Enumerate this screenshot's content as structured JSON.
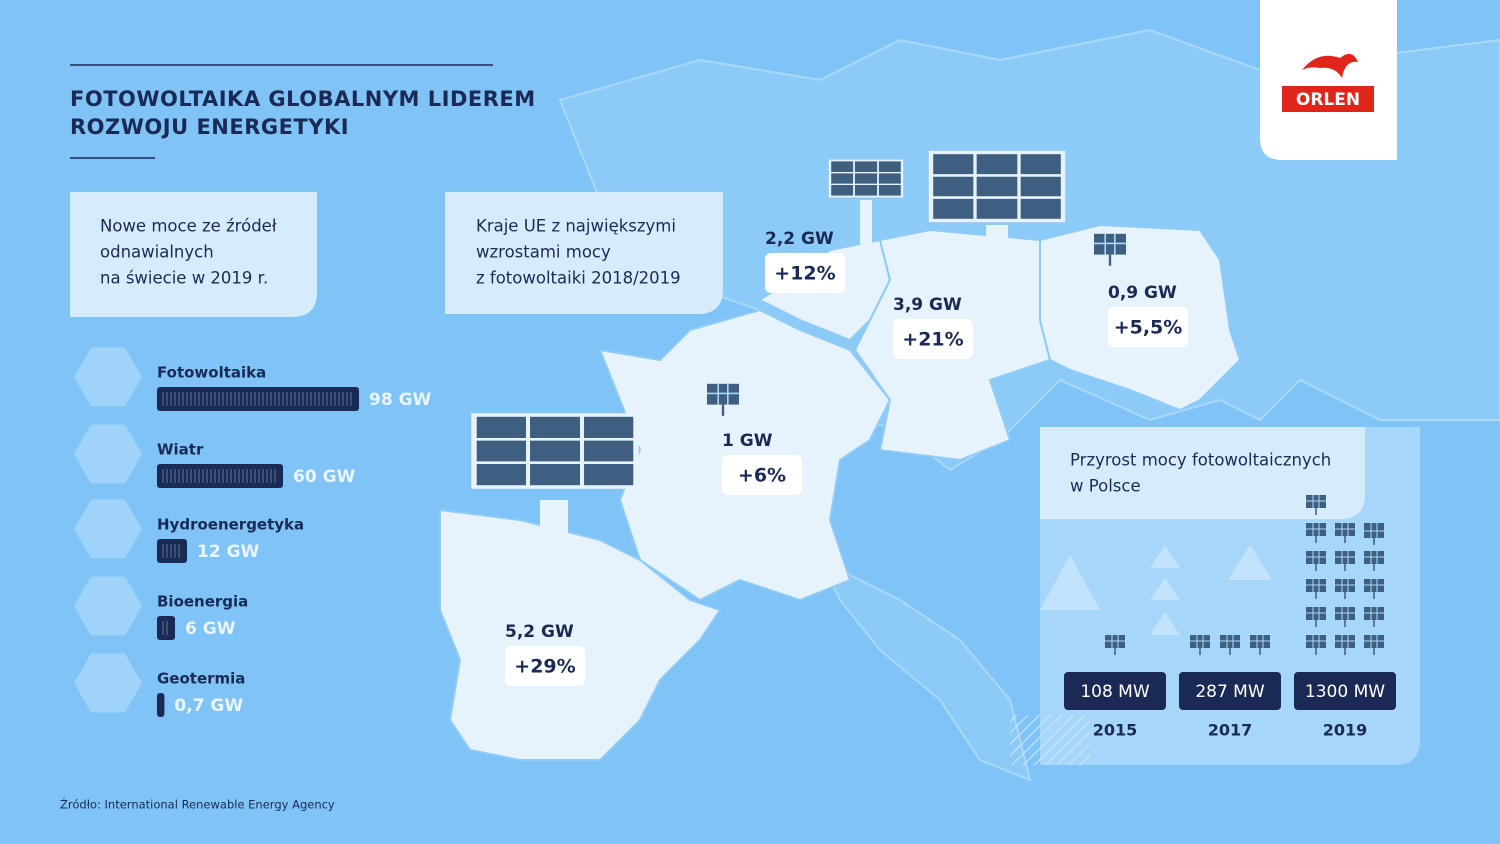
{
  "header": {
    "title_lines": [
      "FOTOWOLTAIKA GLOBALNYM LIDEREM",
      "ROZWOJU ENERGETYKI"
    ]
  },
  "logo": "ORLEN",
  "global_panel": {
    "heading_lines": [
      "Nowe moce ze źródeł",
      "odnawialnych",
      "na świecie w 2019 r."
    ],
    "items": [
      {
        "name": "Fotowoltaika",
        "value": 98,
        "value_label": "98 GW"
      },
      {
        "name": "Wiatr",
        "value": 60,
        "value_label": "60 GW"
      },
      {
        "name": "Hydroenergetyka",
        "value": 12,
        "value_label": "12 GW"
      },
      {
        "name": "Bioenergia",
        "value": 6,
        "value_label": "6 GW"
      },
      {
        "name": "Geotermia",
        "value": 0.7,
        "value_label": "0,7 GW"
      }
    ]
  },
  "eu_panel": {
    "heading_lines": [
      "Kraje UE z największymi",
      "wzrostami mocy",
      "z fotowoltaiki 2018/2019"
    ],
    "countries": [
      {
        "capacity": "5,2 GW",
        "growth": "+29%"
      },
      {
        "capacity": "1 GW",
        "growth": "+6%"
      },
      {
        "capacity": "2,2 GW",
        "growth": "+12%"
      },
      {
        "capacity": "3,9 GW",
        "growth": "+21%"
      },
      {
        "capacity": "0,9 GW",
        "growth": "+5,5%"
      }
    ]
  },
  "poland_panel": {
    "heading_lines": [
      "Przyrost mocy fotowoltaicznych",
      "w Polsce"
    ],
    "years": [
      {
        "capacity": "108 MW",
        "year": "2015"
      },
      {
        "capacity": "287 MW",
        "year": "2017"
      },
      {
        "capacity": "1300 MW",
        "year": "2019"
      }
    ]
  },
  "source": "Źródło: International Renewable Energy Agency"
}
